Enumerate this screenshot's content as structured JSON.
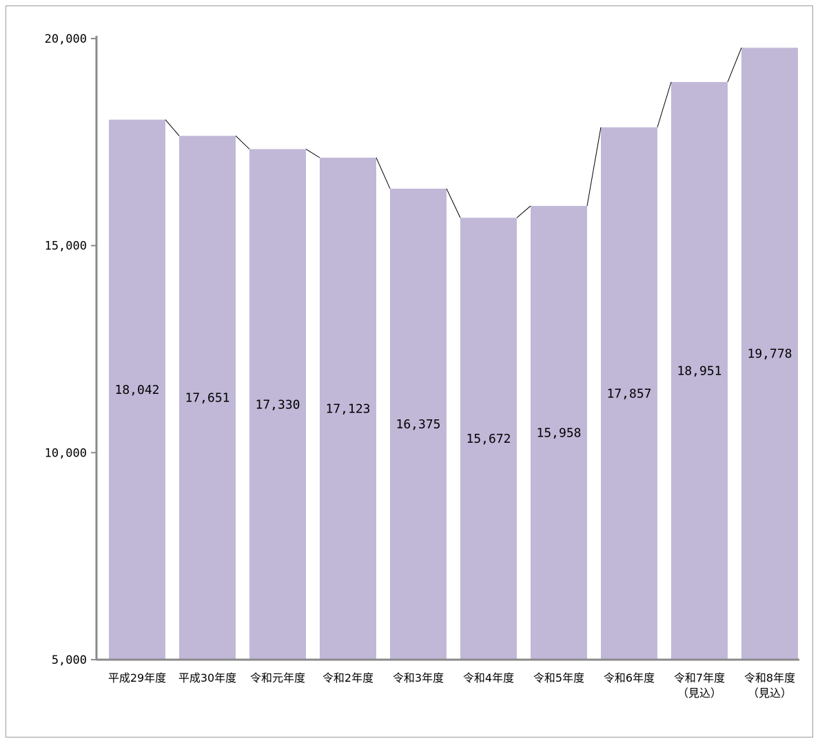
{
  "chart_data": {
    "type": "bar",
    "title": "",
    "xlabel": "",
    "ylabel": "",
    "categories": [
      [
        "平成29年度"
      ],
      [
        "平成30年度"
      ],
      [
        "令和元年度"
      ],
      [
        "令和2年度"
      ],
      [
        "令和3年度"
      ],
      [
        "令和4年度"
      ],
      [
        "令和5年度"
      ],
      [
        "令和6年度"
      ],
      [
        "令和7年度",
        "（見込）"
      ],
      [
        "令和8年度",
        "（見込）"
      ]
    ],
    "values": [
      18042,
      17651,
      17330,
      17123,
      16375,
      15672,
      15958,
      17857,
      18951,
      19778
    ],
    "value_labels": [
      "18,042",
      "17,651",
      "17,330",
      "17,123",
      "16,375",
      "15,672",
      "15,958",
      "17,857",
      "18,951",
      "19,778"
    ],
    "ylim": [
      5000,
      20000
    ],
    "yticks": [
      5000,
      10000,
      15000,
      20000
    ],
    "ytick_labels": [
      "5,000",
      "10,000",
      "15,000",
      "20,000"
    ],
    "grid": false,
    "series_lines": true,
    "colors": {
      "bar": "#c1b8d8",
      "axis": "#8a8a8a",
      "connector": "#000000"
    }
  }
}
